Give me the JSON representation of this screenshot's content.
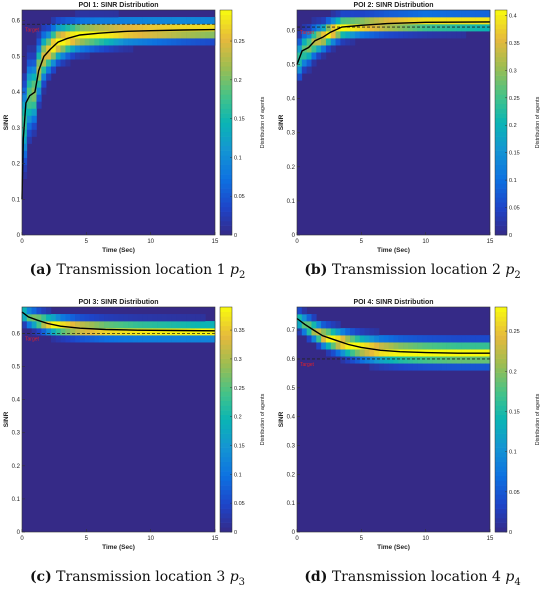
{
  "chart_data": [
    {
      "type": "heatmap",
      "title": "POI 1: SINR Distribution",
      "xlabel": "Time (Sec)",
      "ylabel": "SINR",
      "colorbar_label": "Distribution of agents",
      "xlim": [
        0,
        15
      ],
      "ylim": [
        0,
        0.63
      ],
      "x_ticks": [
        "0",
        "5",
        "10",
        "15"
      ],
      "y_ticks": [
        "0",
        "0.1",
        "0.2",
        "0.3",
        "0.4",
        "0.5",
        "0.6"
      ],
      "colorbar_max": 0.29,
      "colorbar_ticks": [
        "0",
        "0.05",
        "0.1",
        "0.15",
        "0.2",
        "0.25"
      ],
      "target_label": "Target",
      "target_value": 0.59,
      "mean_curve": [
        [
          0,
          0.1
        ],
        [
          0.1,
          0.27
        ],
        [
          0.3,
          0.37
        ],
        [
          0.6,
          0.39
        ],
        [
          1.0,
          0.4
        ],
        [
          1.3,
          0.46
        ],
        [
          1.7,
          0.5
        ],
        [
          2.2,
          0.52
        ],
        [
          2.8,
          0.54
        ],
        [
          3.5,
          0.55
        ],
        [
          4.5,
          0.56
        ],
        [
          6,
          0.565
        ],
        [
          8,
          0.57
        ],
        [
          10,
          0.572
        ],
        [
          12.5,
          0.574
        ],
        [
          15,
          0.575
        ]
      ],
      "spread": [
        [
          0,
          0.12
        ],
        [
          1,
          0.09
        ],
        [
          2,
          0.06
        ],
        [
          4,
          0.045
        ],
        [
          8,
          0.035
        ],
        [
          15,
          0.03
        ]
      ]
    },
    {
      "type": "heatmap",
      "title": "POI 2: SINR Distribution",
      "xlabel": "Time (Sec)",
      "ylabel": "SINR",
      "colorbar_label": "Distribution of agents",
      "xlim": [
        0,
        15
      ],
      "ylim": [
        0,
        0.66
      ],
      "x_ticks": [
        "0",
        "5",
        "10",
        "15"
      ],
      "y_ticks": [
        "0",
        "0.1",
        "0.2",
        "0.3",
        "0.4",
        "0.5",
        "0.6"
      ],
      "colorbar_max": 0.41,
      "colorbar_ticks": [
        "0",
        "0.05",
        "0.1",
        "0.15",
        "0.2",
        "0.25",
        "0.3",
        "0.35",
        "0.4"
      ],
      "target_label": "Target",
      "target_value": 0.61,
      "mean_curve": [
        [
          0,
          0.5
        ],
        [
          0.4,
          0.54
        ],
        [
          0.9,
          0.55
        ],
        [
          1.4,
          0.57
        ],
        [
          2,
          0.58
        ],
        [
          2.6,
          0.595
        ],
        [
          3.5,
          0.61
        ],
        [
          5,
          0.615
        ],
        [
          7,
          0.62
        ],
        [
          10,
          0.624
        ],
        [
          15,
          0.625
        ]
      ],
      "spread": [
        [
          0,
          0.06
        ],
        [
          2,
          0.04
        ],
        [
          5,
          0.03
        ],
        [
          15,
          0.025
        ]
      ]
    },
    {
      "type": "heatmap",
      "title": "POI 3: SINR Distribution",
      "xlabel": "Time (Sec)",
      "ylabel": "SINR",
      "colorbar_label": "Distribution of agents",
      "xlim": [
        0,
        15
      ],
      "ylim": [
        0,
        0.68
      ],
      "x_ticks": [
        "0",
        "5",
        "10",
        "15"
      ],
      "y_ticks": [
        "0",
        "0.1",
        "0.2",
        "0.3",
        "0.4",
        "0.5",
        "0.6"
      ],
      "colorbar_max": 0.39,
      "colorbar_ticks": [
        "0",
        "0.05",
        "0.1",
        "0.15",
        "0.2",
        "0.25",
        "0.3",
        "0.35"
      ],
      "target_label": "Target",
      "target_value": 0.6,
      "mean_curve": [
        [
          0,
          0.665
        ],
        [
          0.5,
          0.65
        ],
        [
          1.2,
          0.64
        ],
        [
          2,
          0.63
        ],
        [
          3,
          0.622
        ],
        [
          4.5,
          0.616
        ],
        [
          6.5,
          0.612
        ],
        [
          9,
          0.61
        ],
        [
          12,
          0.609
        ],
        [
          15,
          0.608
        ]
      ],
      "spread": [
        [
          0,
          0.03
        ],
        [
          3,
          0.03
        ],
        [
          15,
          0.028
        ]
      ]
    },
    {
      "type": "heatmap",
      "title": "POI 4: SINR Distribution",
      "xlabel": "Time (Sec)",
      "ylabel": "SINR",
      "colorbar_label": "Distribution of agents",
      "xlim": [
        0,
        15
      ],
      "ylim": [
        0,
        0.78
      ],
      "x_ticks": [
        "0",
        "5",
        "10",
        "15"
      ],
      "y_ticks": [
        "0",
        "0.1",
        "0.2",
        "0.3",
        "0.4",
        "0.5",
        "0.6",
        "0.7"
      ],
      "colorbar_max": 0.28,
      "colorbar_ticks": [
        "0",
        "0.05",
        "0.1",
        "0.15",
        "0.2",
        "0.25"
      ],
      "target_label": "Target",
      "target_value": 0.6,
      "mean_curve": [
        [
          0,
          0.74
        ],
        [
          0.6,
          0.72
        ],
        [
          1.3,
          0.7
        ],
        [
          2,
          0.68
        ],
        [
          3,
          0.665
        ],
        [
          4,
          0.65
        ],
        [
          5,
          0.64
        ],
        [
          6.5,
          0.63
        ],
        [
          8,
          0.625
        ],
        [
          10,
          0.622
        ],
        [
          12.5,
          0.62
        ],
        [
          15,
          0.62
        ]
      ],
      "spread": [
        [
          0,
          0.035
        ],
        [
          4,
          0.045
        ],
        [
          8,
          0.045
        ],
        [
          15,
          0.045
        ]
      ]
    }
  ],
  "captions": [
    {
      "letter": "(a)",
      "text": "Transmission location 1",
      "var": "p",
      "sub": "2"
    },
    {
      "letter": "(b)",
      "text": "Transmission location 2",
      "var": "p",
      "sub": "2"
    },
    {
      "letter": "(c)",
      "text": "Transmission location 3",
      "var": "p",
      "sub": "3"
    },
    {
      "letter": "(d)",
      "text": "Transmission location 4",
      "var": "p",
      "sub": "4"
    }
  ]
}
